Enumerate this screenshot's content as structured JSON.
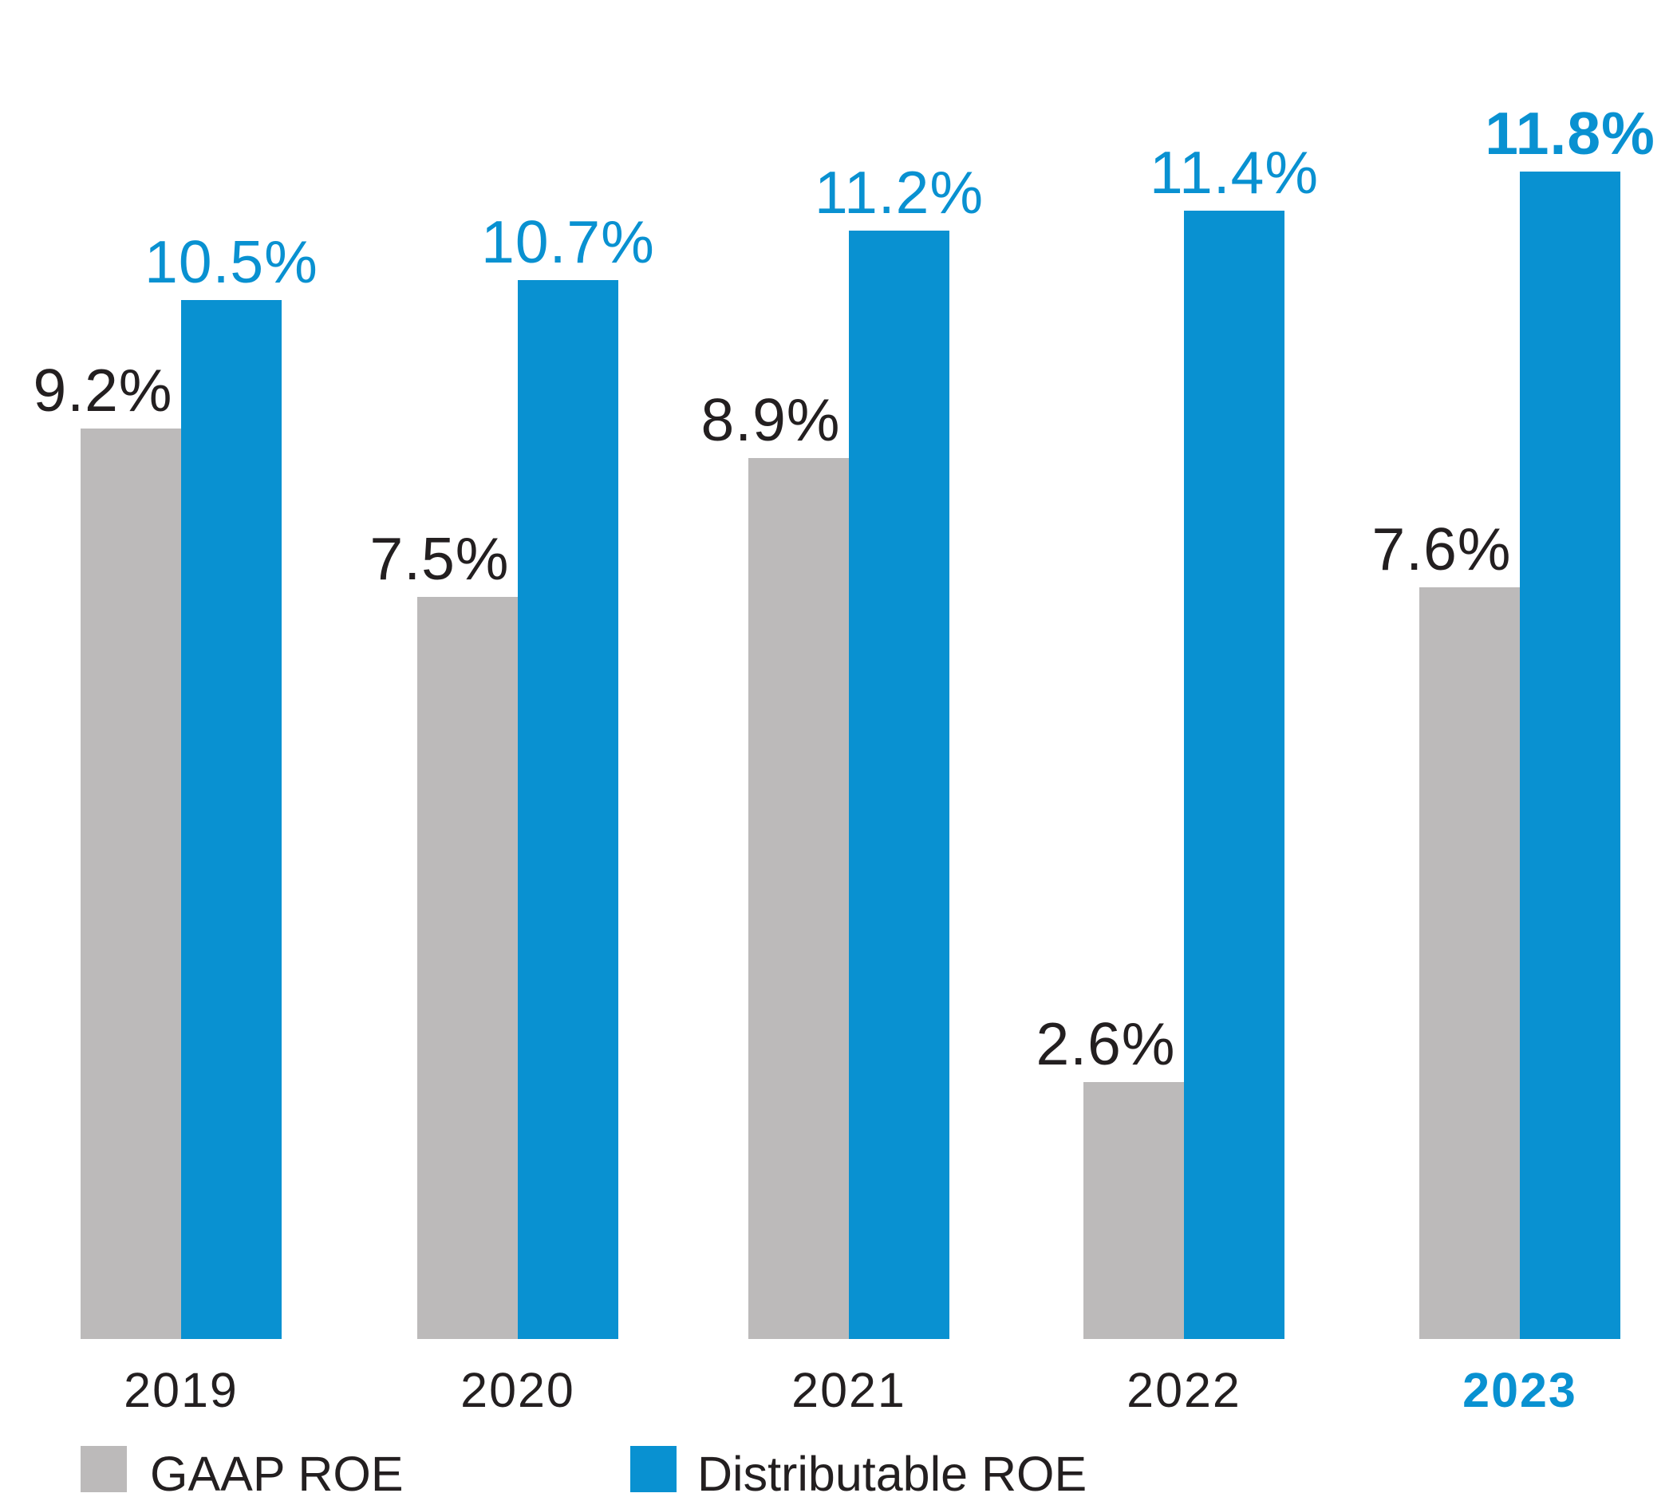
{
  "chart_data": {
    "type": "bar",
    "title": "",
    "categories": [
      "2019",
      "2020",
      "2021",
      "2022",
      "2023"
    ],
    "series": [
      {
        "name": "GAAP ROE",
        "color": "#bcbaba",
        "label_color": "#231f20",
        "values": [
          9.2,
          7.5,
          8.9,
          2.6,
          7.6
        ],
        "data_labels": [
          "9.2%",
          "7.5%",
          "8.9%",
          "2.6%",
          "7.6%"
        ]
      },
      {
        "name": "Distributable ROE",
        "color": "#0991d1",
        "label_color": "#0991d1",
        "values": [
          10.5,
          10.7,
          11.2,
          11.4,
          11.8
        ],
        "data_labels": [
          "10.5%",
          "10.7%",
          "11.2%",
          "11.4%",
          "11.8%"
        ]
      }
    ],
    "value_suffix": "%",
    "ylim": [
      0,
      12.1
    ],
    "grid": false,
    "axis_label_color": "#231f20",
    "highlight_category": "2023",
    "highlight_color": "#0991d1",
    "legend_position": "bottom"
  }
}
